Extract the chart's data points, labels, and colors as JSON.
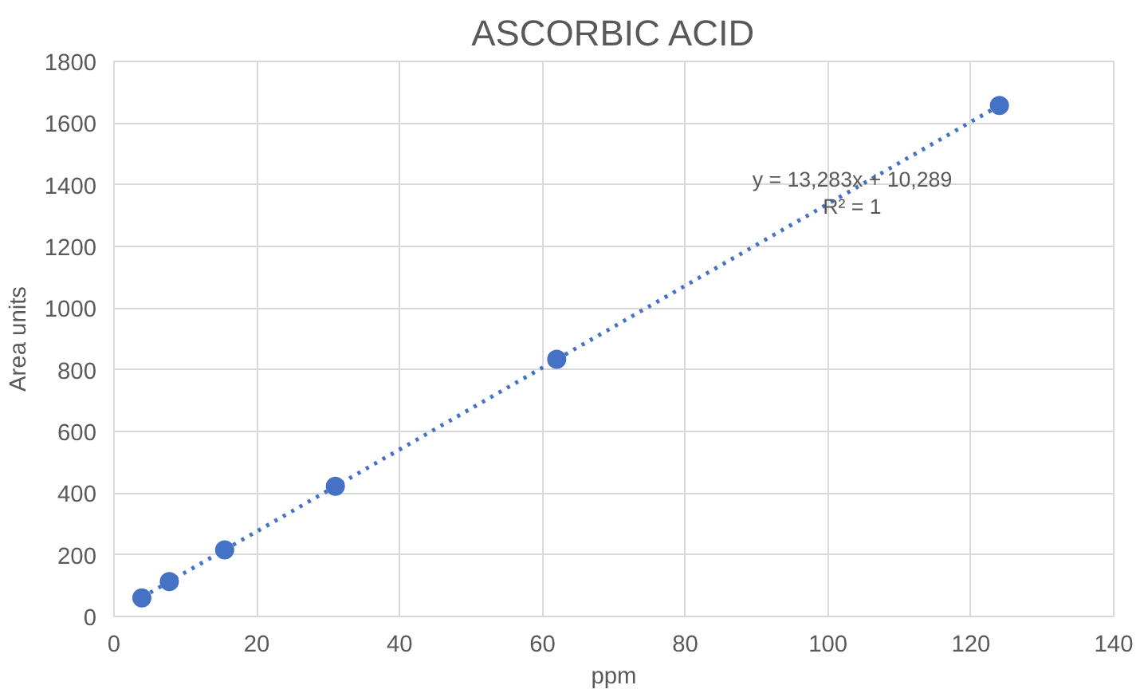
{
  "chart_data": {
    "type": "scatter",
    "title": "ASCORBIC ACID",
    "xlabel": "ppm",
    "ylabel": "Area units",
    "series": [
      {
        "color": "#4472c4",
        "x": [
          3.9,
          7.75,
          15.5,
          31,
          62,
          124
        ],
        "values": [
          60,
          113,
          216,
          422,
          834,
          1657
        ],
        "marker": "circle"
      },
      {
        "type": "line",
        "color": "#4472c4",
        "x": [
          3.9,
          124
        ],
        "values": [
          62,
          1657
        ],
        "line_style": "dotted"
      }
    ],
    "annotations": [
      "y = 13,283x + 10,289",
      "R² = 1"
    ],
    "xlim": [
      0,
      140
    ],
    "xticks": [
      0,
      20,
      40,
      60,
      80,
      100,
      120,
      140
    ],
    "ylim": [
      0,
      1800
    ],
    "yticks": [
      0,
      200,
      400,
      600,
      800,
      1000,
      1200,
      1400,
      1600,
      1800
    ],
    "grid": true
  }
}
